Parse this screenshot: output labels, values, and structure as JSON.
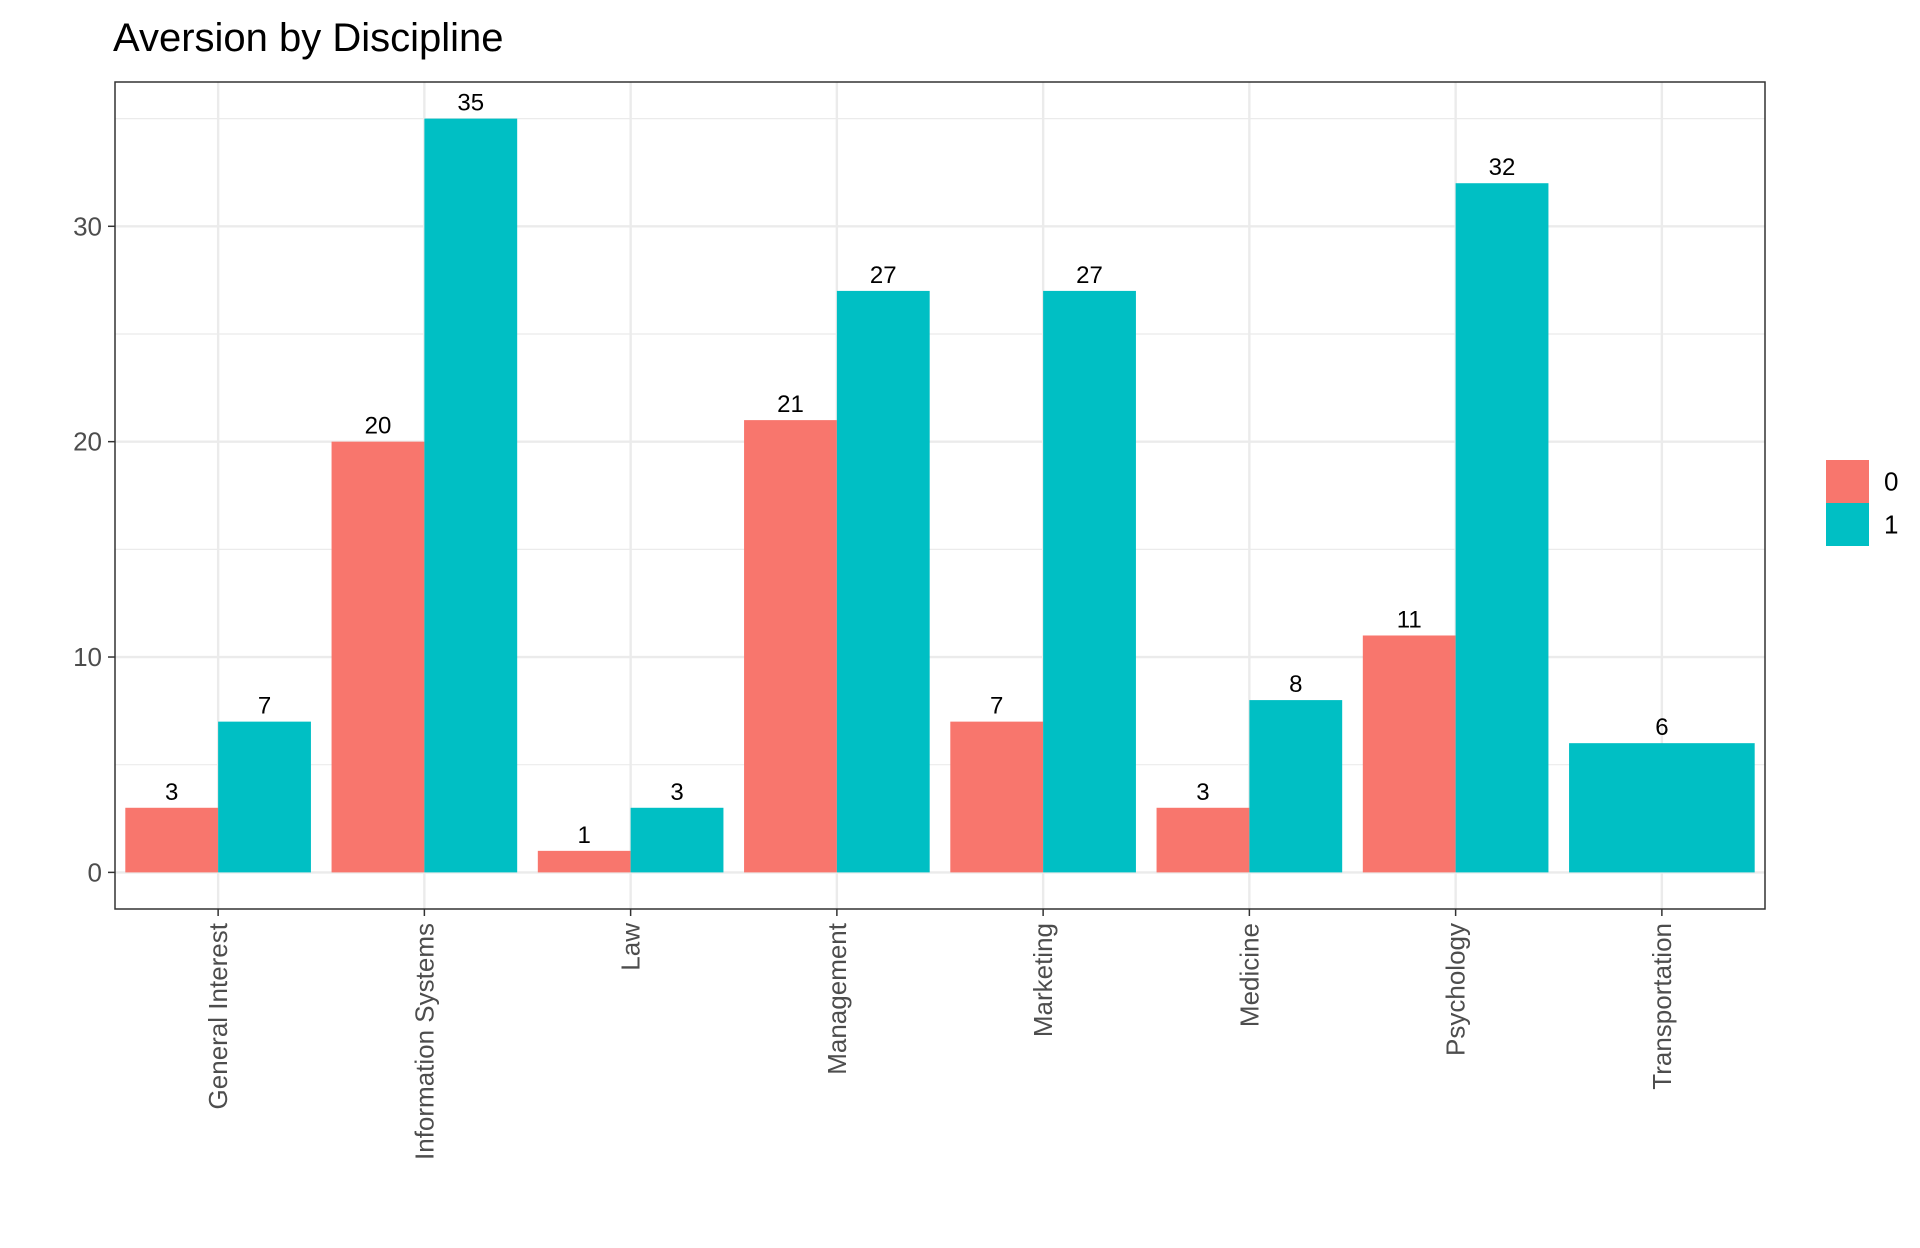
{
  "chart_data": {
    "type": "bar",
    "title": "Aversion by Discipline",
    "xlabel": "",
    "ylabel": "",
    "categories": [
      "General Interest",
      "Information Systems",
      "Law",
      "Management",
      "Marketing",
      "Medicine",
      "Psychology",
      "Transportation"
    ],
    "series": [
      {
        "name": "0",
        "color": "#F8766D",
        "values": [
          3,
          20,
          1,
          21,
          7,
          3,
          11,
          null
        ]
      },
      {
        "name": "1",
        "color": "#00BFC4",
        "values": [
          7,
          35,
          3,
          27,
          27,
          8,
          32,
          6
        ]
      }
    ],
    "ylim": [
      -1.7,
      36.7
    ],
    "yticks": [
      0,
      10,
      20,
      30
    ],
    "grid": true,
    "legend_position": "right",
    "x_tick_rotation": -90
  }
}
